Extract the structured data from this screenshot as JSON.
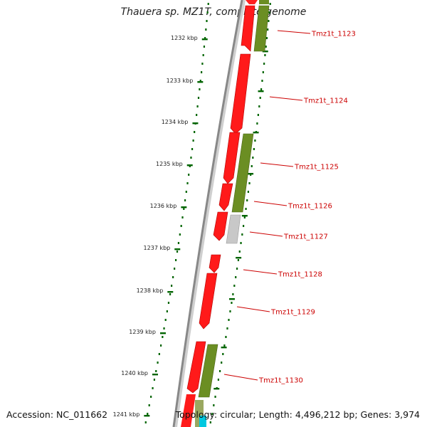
{
  "title": "Thauera sp. MZ1T, complete genome",
  "footer": {
    "accession": "Accession: NC_011662",
    "stats": "Topology: circular; Length: 4,496,212 bp; Genes: 3,974"
  },
  "kbp_labels": [
    "1232 kbp",
    "1233 kbp",
    "1234 kbp",
    "1235 kbp",
    "1236 kbp",
    "1237 kbp",
    "1238 kbp",
    "1239 kbp",
    "1240 kbp",
    "1241 kbp"
  ],
  "genes": [
    {
      "label": "Tmz1t_1123",
      "color": "#ff0000"
    },
    {
      "label": "Tmz1t_1124",
      "color": "#ff0000"
    },
    {
      "label": "Tmz1t_1125",
      "color": "#ff0000"
    },
    {
      "label": "Tmz1t_1126",
      "color": "#ff0000"
    },
    {
      "label": "Tmz1t_1127",
      "color": "#ff0000"
    },
    {
      "label": "Tmz1t_1128",
      "color": "#ff0000"
    },
    {
      "label": "Tmz1t_1129",
      "color": "#ff0000"
    },
    {
      "label": "Tmz1t_1130",
      "color": "#ff0000"
    }
  ],
  "colors": {
    "cds": "#ff0000",
    "cog": "#6b8e23",
    "unknown": "#c8c8c8",
    "tick": "#006400",
    "backbone": "#888888",
    "label": "#cc0000"
  }
}
